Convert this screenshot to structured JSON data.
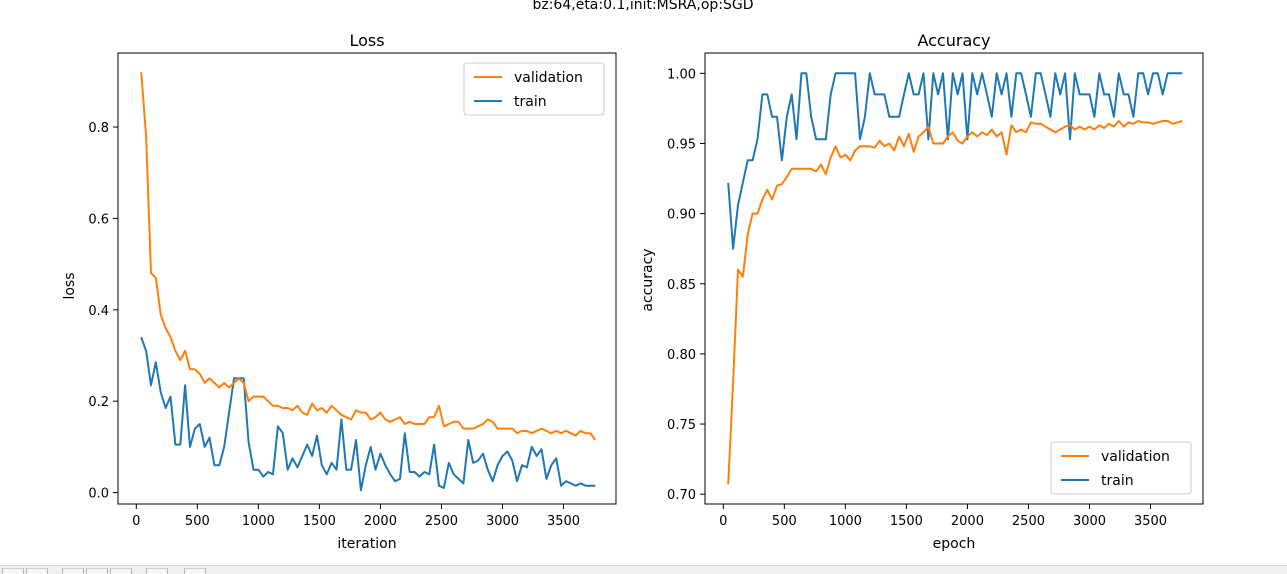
{
  "figure": {
    "suptitle": "bz:64,eta:0.1,init:MSRA,op:SGD"
  },
  "toolbar": {
    "buttons": [
      "home-icon",
      "back-icon",
      "forward-icon",
      "pan-icon",
      "zoom-icon",
      "configure-icon",
      "save-icon"
    ]
  },
  "colors": {
    "validation": "#ff7f0e",
    "train": "#1f77b4"
  },
  "chart_data": [
    {
      "type": "line",
      "title": "Loss",
      "xlabel": "iteration",
      "ylabel": "loss",
      "xlim": [
        -150,
        3930
      ],
      "ylim": [
        -0.025,
        0.962
      ],
      "xticks": [
        0,
        500,
        1000,
        1500,
        2000,
        2500,
        3000,
        3500
      ],
      "yticks": [
        0.0,
        0.2,
        0.4,
        0.6,
        0.8
      ],
      "ytick_labels": [
        "0.0",
        "0.2",
        "0.4",
        "0.6",
        "0.8"
      ],
      "legend_position": "upper right",
      "grid": false,
      "series": [
        {
          "name": "validation",
          "color": "#ff7f0e",
          "x": [
            40,
            80,
            120,
            160,
            200,
            240,
            280,
            320,
            360,
            400,
            440,
            480,
            520,
            560,
            600,
            640,
            680,
            720,
            760,
            800,
            840,
            880,
            920,
            960,
            1000,
            1040,
            1080,
            1120,
            1160,
            1200,
            1240,
            1280,
            1320,
            1360,
            1400,
            1440,
            1480,
            1520,
            1560,
            1600,
            1640,
            1680,
            1720,
            1760,
            1800,
            1840,
            1880,
            1920,
            1960,
            2000,
            2040,
            2080,
            2120,
            2160,
            2200,
            2240,
            2280,
            2320,
            2360,
            2400,
            2440,
            2480,
            2520,
            2560,
            2600,
            2640,
            2680,
            2720,
            2760,
            2800,
            2840,
            2880,
            2920,
            2960,
            3000,
            3040,
            3080,
            3120,
            3160,
            3200,
            3240,
            3280,
            3320,
            3360,
            3400,
            3440,
            3480,
            3520,
            3560,
            3600,
            3640,
            3680,
            3720,
            3760
          ],
          "y": [
            0.92,
            0.78,
            0.48,
            0.47,
            0.39,
            0.36,
            0.34,
            0.31,
            0.29,
            0.31,
            0.27,
            0.27,
            0.26,
            0.24,
            0.25,
            0.24,
            0.23,
            0.24,
            0.23,
            0.24,
            0.25,
            0.24,
            0.2,
            0.21,
            0.21,
            0.21,
            0.2,
            0.19,
            0.19,
            0.185,
            0.185,
            0.18,
            0.19,
            0.175,
            0.17,
            0.195,
            0.18,
            0.185,
            0.175,
            0.19,
            0.18,
            0.17,
            0.165,
            0.16,
            0.18,
            0.175,
            0.175,
            0.16,
            0.165,
            0.175,
            0.16,
            0.155,
            0.16,
            0.165,
            0.15,
            0.155,
            0.15,
            0.15,
            0.15,
            0.165,
            0.165,
            0.19,
            0.145,
            0.15,
            0.155,
            0.155,
            0.14,
            0.14,
            0.14,
            0.145,
            0.15,
            0.16,
            0.155,
            0.14,
            0.14,
            0.14,
            0.14,
            0.13,
            0.135,
            0.135,
            0.13,
            0.135,
            0.14,
            0.135,
            0.13,
            0.135,
            0.13,
            0.135,
            0.13,
            0.125,
            0.135,
            0.13,
            0.13,
            0.115
          ]
        },
        {
          "name": "train",
          "color": "#1f77b4",
          "x": [
            40,
            80,
            120,
            160,
            200,
            240,
            280,
            320,
            360,
            400,
            440,
            480,
            520,
            560,
            600,
            640,
            680,
            720,
            760,
            800,
            840,
            880,
            920,
            960,
            1000,
            1040,
            1080,
            1120,
            1160,
            1200,
            1240,
            1280,
            1320,
            1360,
            1400,
            1440,
            1480,
            1520,
            1560,
            1600,
            1640,
            1680,
            1720,
            1760,
            1800,
            1840,
            1880,
            1920,
            1960,
            2000,
            2040,
            2080,
            2120,
            2160,
            2200,
            2240,
            2280,
            2320,
            2360,
            2400,
            2440,
            2480,
            2520,
            2560,
            2600,
            2640,
            2680,
            2720,
            2760,
            2800,
            2840,
            2880,
            2920,
            2960,
            3000,
            3040,
            3080,
            3120,
            3160,
            3200,
            3240,
            3280,
            3320,
            3360,
            3400,
            3440,
            3480,
            3520,
            3560,
            3600,
            3640,
            3680,
            3720,
            3760
          ],
          "y": [
            0.34,
            0.31,
            0.235,
            0.285,
            0.22,
            0.185,
            0.21,
            0.105,
            0.105,
            0.235,
            0.1,
            0.14,
            0.15,
            0.1,
            0.12,
            0.06,
            0.06,
            0.1,
            0.175,
            0.25,
            0.25,
            0.25,
            0.11,
            0.05,
            0.05,
            0.035,
            0.045,
            0.04,
            0.145,
            0.13,
            0.05,
            0.075,
            0.055,
            0.08,
            0.105,
            0.08,
            0.125,
            0.06,
            0.04,
            0.065,
            0.05,
            0.16,
            0.05,
            0.05,
            0.115,
            0.005,
            0.06,
            0.1,
            0.05,
            0.085,
            0.06,
            0.04,
            0.025,
            0.03,
            0.13,
            0.045,
            0.045,
            0.035,
            0.045,
            0.04,
            0.105,
            0.015,
            0.01,
            0.065,
            0.04,
            0.03,
            0.02,
            0.115,
            0.065,
            0.07,
            0.085,
            0.05,
            0.025,
            0.06,
            0.08,
            0.09,
            0.07,
            0.025,
            0.06,
            0.055,
            0.1,
            0.08,
            0.095,
            0.03,
            0.06,
            0.075,
            0.015,
            0.025,
            0.02,
            0.015,
            0.02,
            0.015,
            0.015,
            0.015
          ]
        }
      ]
    },
    {
      "type": "line",
      "title": "Accuracy",
      "xlabel": "epoch",
      "ylabel": "accuracy",
      "xlim": [
        -150,
        3930
      ],
      "ylim": [
        0.693,
        1.0145
      ],
      "xticks": [
        0,
        500,
        1000,
        1500,
        2000,
        2500,
        3000,
        3500
      ],
      "yticks": [
        0.7,
        0.75,
        0.8,
        0.85,
        0.9,
        0.95,
        1.0
      ],
      "ytick_labels": [
        "0.70",
        "0.75",
        "0.80",
        "0.85",
        "0.90",
        "0.95",
        "1.00"
      ],
      "legend_position": "lower right",
      "grid": false,
      "series": [
        {
          "name": "validation",
          "color": "#ff7f0e",
          "x": [
            40,
            80,
            120,
            160,
            200,
            240,
            280,
            320,
            360,
            400,
            440,
            480,
            520,
            560,
            600,
            640,
            680,
            720,
            760,
            800,
            840,
            880,
            920,
            960,
            1000,
            1040,
            1080,
            1120,
            1160,
            1200,
            1240,
            1280,
            1320,
            1360,
            1400,
            1440,
            1480,
            1520,
            1560,
            1600,
            1640,
            1680,
            1720,
            1760,
            1800,
            1840,
            1880,
            1920,
            1960,
            2000,
            2040,
            2080,
            2120,
            2160,
            2200,
            2240,
            2280,
            2320,
            2360,
            2400,
            2440,
            2480,
            2520,
            2560,
            2600,
            2640,
            2680,
            2720,
            2760,
            2800,
            2840,
            2880,
            2920,
            2960,
            3000,
            3040,
            3080,
            3120,
            3160,
            3200,
            3240,
            3280,
            3320,
            3360,
            3400,
            3440,
            3480,
            3520,
            3560,
            3600,
            3640,
            3680,
            3720,
            3760
          ],
          "y": [
            0.707,
            0.78,
            0.86,
            0.855,
            0.885,
            0.9,
            0.9,
            0.91,
            0.917,
            0.91,
            0.92,
            0.921,
            0.926,
            0.932,
            0.932,
            0.932,
            0.932,
            0.932,
            0.93,
            0.935,
            0.928,
            0.94,
            0.948,
            0.94,
            0.942,
            0.938,
            0.945,
            0.948,
            0.948,
            0.948,
            0.947,
            0.952,
            0.948,
            0.95,
            0.945,
            0.955,
            0.948,
            0.957,
            0.944,
            0.955,
            0.958,
            0.962,
            0.95,
            0.95,
            0.95,
            0.955,
            0.958,
            0.952,
            0.95,
            0.955,
            0.958,
            0.955,
            0.958,
            0.956,
            0.96,
            0.955,
            0.958,
            0.942,
            0.963,
            0.958,
            0.96,
            0.958,
            0.965,
            0.964,
            0.964,
            0.962,
            0.96,
            0.958,
            0.96,
            0.962,
            0.963,
            0.96,
            0.962,
            0.96,
            0.962,
            0.96,
            0.963,
            0.961,
            0.964,
            0.962,
            0.966,
            0.962,
            0.965,
            0.964,
            0.966,
            0.965,
            0.965,
            0.964,
            0.965,
            0.966,
            0.966,
            0.964,
            0.965,
            0.966
          ]
        },
        {
          "name": "train",
          "color": "#1f77b4",
          "x": [
            40,
            80,
            120,
            160,
            200,
            240,
            280,
            320,
            360,
            400,
            440,
            480,
            520,
            560,
            600,
            640,
            680,
            720,
            760,
            800,
            840,
            880,
            920,
            960,
            1000,
            1040,
            1080,
            1120,
            1160,
            1200,
            1240,
            1280,
            1320,
            1360,
            1400,
            1440,
            1480,
            1520,
            1560,
            1600,
            1640,
            1680,
            1720,
            1760,
            1800,
            1840,
            1880,
            1920,
            1960,
            2000,
            2040,
            2080,
            2120,
            2160,
            2200,
            2240,
            2280,
            2320,
            2360,
            2400,
            2440,
            2480,
            2520,
            2560,
            2600,
            2640,
            2680,
            2720,
            2760,
            2800,
            2840,
            2880,
            2920,
            2960,
            3000,
            3040,
            3080,
            3120,
            3160,
            3200,
            3240,
            3280,
            3320,
            3360,
            3400,
            3440,
            3480,
            3520,
            3560,
            3600,
            3640,
            3680,
            3720,
            3760
          ],
          "y": [
            0.922,
            0.875,
            0.906,
            0.922,
            0.938,
            0.938,
            0.953,
            0.985,
            0.985,
            0.969,
            0.969,
            0.938,
            0.969,
            0.985,
            0.953,
            1.0,
            1.0,
            0.969,
            0.953,
            0.953,
            0.953,
            0.985,
            1.0,
            1.0,
            1.0,
            1.0,
            1.0,
            0.953,
            0.969,
            1.0,
            0.985,
            0.985,
            0.985,
            0.969,
            0.969,
            0.969,
            0.985,
            1.0,
            0.985,
            0.985,
            1.0,
            0.953,
            1.0,
            0.985,
            1.0,
            0.953,
            1.0,
            0.985,
            1.0,
            0.953,
            1.0,
            0.985,
            1.0,
            0.985,
            0.969,
            1.0,
            0.985,
            1.0,
            0.969,
            1.0,
            1.0,
            0.985,
            0.969,
            1.0,
            1.0,
            0.985,
            0.969,
            1.0,
            0.985,
            1.0,
            0.953,
            1.0,
            0.985,
            0.985,
            0.985,
            0.969,
            1.0,
            0.985,
            0.985,
            0.969,
            1.0,
            0.985,
            0.985,
            0.969,
            1.0,
            1.0,
            0.985,
            1.0,
            1.0,
            0.985,
            1.0,
            1.0,
            1.0,
            1.0
          ]
        }
      ]
    }
  ]
}
